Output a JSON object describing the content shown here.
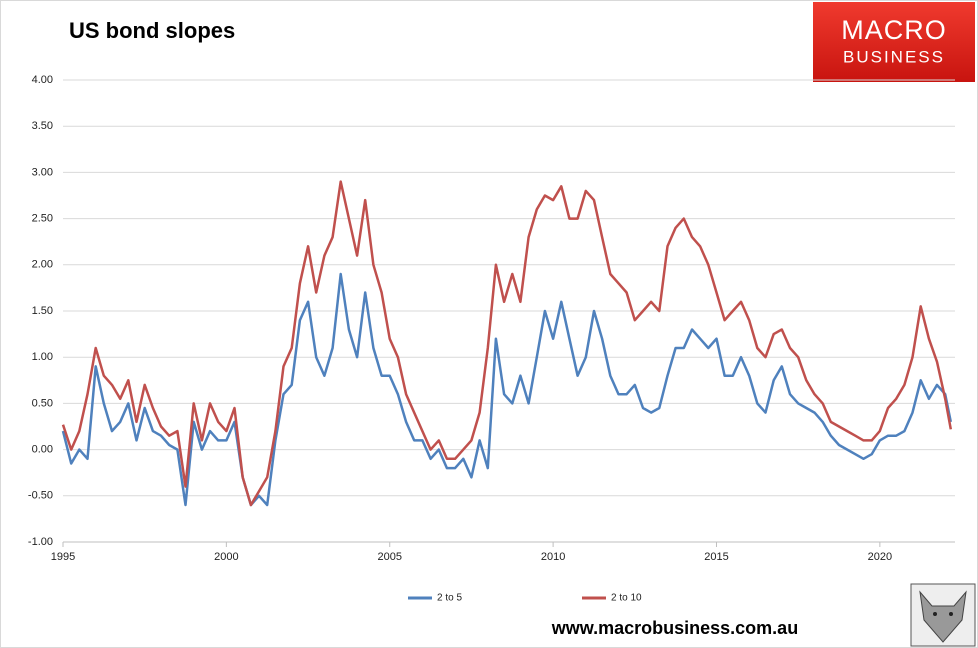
{
  "chart_data": {
    "type": "line",
    "title": "US bond slopes",
    "x": [
      1995,
      1995.25,
      1995.5,
      1995.75,
      1996,
      1996.25,
      1996.5,
      1996.75,
      1997,
      1997.25,
      1997.5,
      1997.75,
      1998,
      1998.25,
      1998.5,
      1998.75,
      1999,
      1999.25,
      1999.5,
      1999.75,
      2000,
      2000.25,
      2000.5,
      2000.75,
      2001,
      2001.25,
      2001.5,
      2001.75,
      2002,
      2002.25,
      2002.5,
      2002.75,
      2003,
      2003.25,
      2003.5,
      2003.75,
      2004,
      2004.25,
      2004.5,
      2004.75,
      2005,
      2005.25,
      2005.5,
      2005.75,
      2006,
      2006.25,
      2006.5,
      2006.75,
      2007,
      2007.25,
      2007.5,
      2007.75,
      2008,
      2008.25,
      2008.5,
      2008.75,
      2009,
      2009.25,
      2009.5,
      2009.75,
      2010,
      2010.25,
      2010.5,
      2010.75,
      2011,
      2011.25,
      2011.5,
      2011.75,
      2012,
      2012.25,
      2012.5,
      2012.75,
      2013,
      2013.25,
      2013.5,
      2013.75,
      2014,
      2014.25,
      2014.5,
      2014.75,
      2015,
      2015.25,
      2015.5,
      2015.75,
      2016,
      2016.25,
      2016.5,
      2016.75,
      2017,
      2017.25,
      2017.5,
      2017.75,
      2018,
      2018.25,
      2018.5,
      2018.75,
      2019,
      2019.25,
      2019.5,
      2019.75,
      2020,
      2020.25,
      2020.5,
      2020.75,
      2021,
      2021.25,
      2021.5,
      2021.75,
      2022,
      2022.17
    ],
    "series": [
      {
        "name": "2 to 5",
        "color": "#4f81bd",
        "values": [
          0.2,
          -0.15,
          0.0,
          -0.1,
          0.9,
          0.5,
          0.2,
          0.3,
          0.5,
          0.1,
          0.45,
          0.2,
          0.15,
          0.05,
          0.0,
          -0.6,
          0.3,
          0.0,
          0.2,
          0.1,
          0.1,
          0.3,
          -0.3,
          -0.6,
          -0.5,
          -0.6,
          0.1,
          0.6,
          0.7,
          1.4,
          1.6,
          1.0,
          0.8,
          1.1,
          1.9,
          1.3,
          1.0,
          1.7,
          1.1,
          0.8,
          0.8,
          0.6,
          0.3,
          0.1,
          0.1,
          -0.1,
          0.0,
          -0.2,
          -0.2,
          -0.1,
          -0.3,
          0.1,
          -0.2,
          1.2,
          0.6,
          0.5,
          0.8,
          0.5,
          1.0,
          1.5,
          1.2,
          1.6,
          1.2,
          0.8,
          1.0,
          1.5,
          1.2,
          0.8,
          0.6,
          0.6,
          0.7,
          0.45,
          0.4,
          0.45,
          0.8,
          1.1,
          1.1,
          1.3,
          1.2,
          1.1,
          1.2,
          0.8,
          0.8,
          1.0,
          0.8,
          0.5,
          0.4,
          0.75,
          0.9,
          0.6,
          0.5,
          0.45,
          0.4,
          0.3,
          0.15,
          0.05,
          0.0,
          -0.05,
          -0.1,
          -0.05,
          0.1,
          0.15,
          0.15,
          0.2,
          0.4,
          0.75,
          0.55,
          0.7,
          0.6,
          0.3
        ]
      },
      {
        "name": "2 to 10",
        "color": "#c0504d",
        "values": [
          0.27,
          0.0,
          0.2,
          0.6,
          1.1,
          0.8,
          0.7,
          0.55,
          0.75,
          0.3,
          0.7,
          0.45,
          0.25,
          0.15,
          0.2,
          -0.4,
          0.5,
          0.1,
          0.5,
          0.3,
          0.2,
          0.45,
          -0.3,
          -0.6,
          -0.45,
          -0.3,
          0.2,
          0.9,
          1.1,
          1.8,
          2.2,
          1.7,
          2.1,
          2.3,
          2.9,
          2.5,
          2.1,
          2.7,
          2.0,
          1.7,
          1.2,
          1.0,
          0.6,
          0.4,
          0.2,
          0.0,
          0.1,
          -0.1,
          -0.1,
          0.0,
          0.1,
          0.4,
          1.1,
          2.0,
          1.6,
          1.9,
          1.6,
          2.3,
          2.6,
          2.75,
          2.7,
          2.85,
          2.5,
          2.5,
          2.8,
          2.7,
          2.3,
          1.9,
          1.8,
          1.7,
          1.4,
          1.5,
          1.6,
          1.5,
          2.2,
          2.4,
          2.5,
          2.3,
          2.2,
          2.0,
          1.7,
          1.4,
          1.5,
          1.6,
          1.4,
          1.1,
          1.0,
          1.25,
          1.3,
          1.1,
          1.0,
          0.75,
          0.6,
          0.5,
          0.3,
          0.25,
          0.2,
          0.15,
          0.1,
          0.1,
          0.2,
          0.45,
          0.55,
          0.7,
          1.0,
          1.55,
          1.2,
          0.95,
          0.55,
          0.22
        ]
      }
    ],
    "xlim": [
      1995,
      2022.3
    ],
    "xticks": [
      1995,
      2000,
      2005,
      2010,
      2015,
      2020
    ],
    "ylim": [
      -1,
      4
    ],
    "yticks": [
      {
        "value": -1,
        "label": "-1.00"
      },
      {
        "value": -0.5,
        "label": "-0.50"
      },
      {
        "value": 0,
        "label": "0.00"
      },
      {
        "value": 0.5,
        "label": "0.50"
      },
      {
        "value": 1,
        "label": "1.00"
      },
      {
        "value": 1.5,
        "label": "1.50"
      },
      {
        "value": 2,
        "label": "2.00"
      },
      {
        "value": 2.5,
        "label": "2.50"
      },
      {
        "value": 3,
        "label": "3.00"
      },
      {
        "value": 3.5,
        "label": "3.50"
      },
      {
        "value": 4,
        "label": "4.00"
      }
    ],
    "grid": true,
    "legend": "bottom"
  },
  "logo": {
    "line1": "MACRO",
    "line2": "BUSINESS"
  },
  "footer": "www.macrobusiness.com.au"
}
